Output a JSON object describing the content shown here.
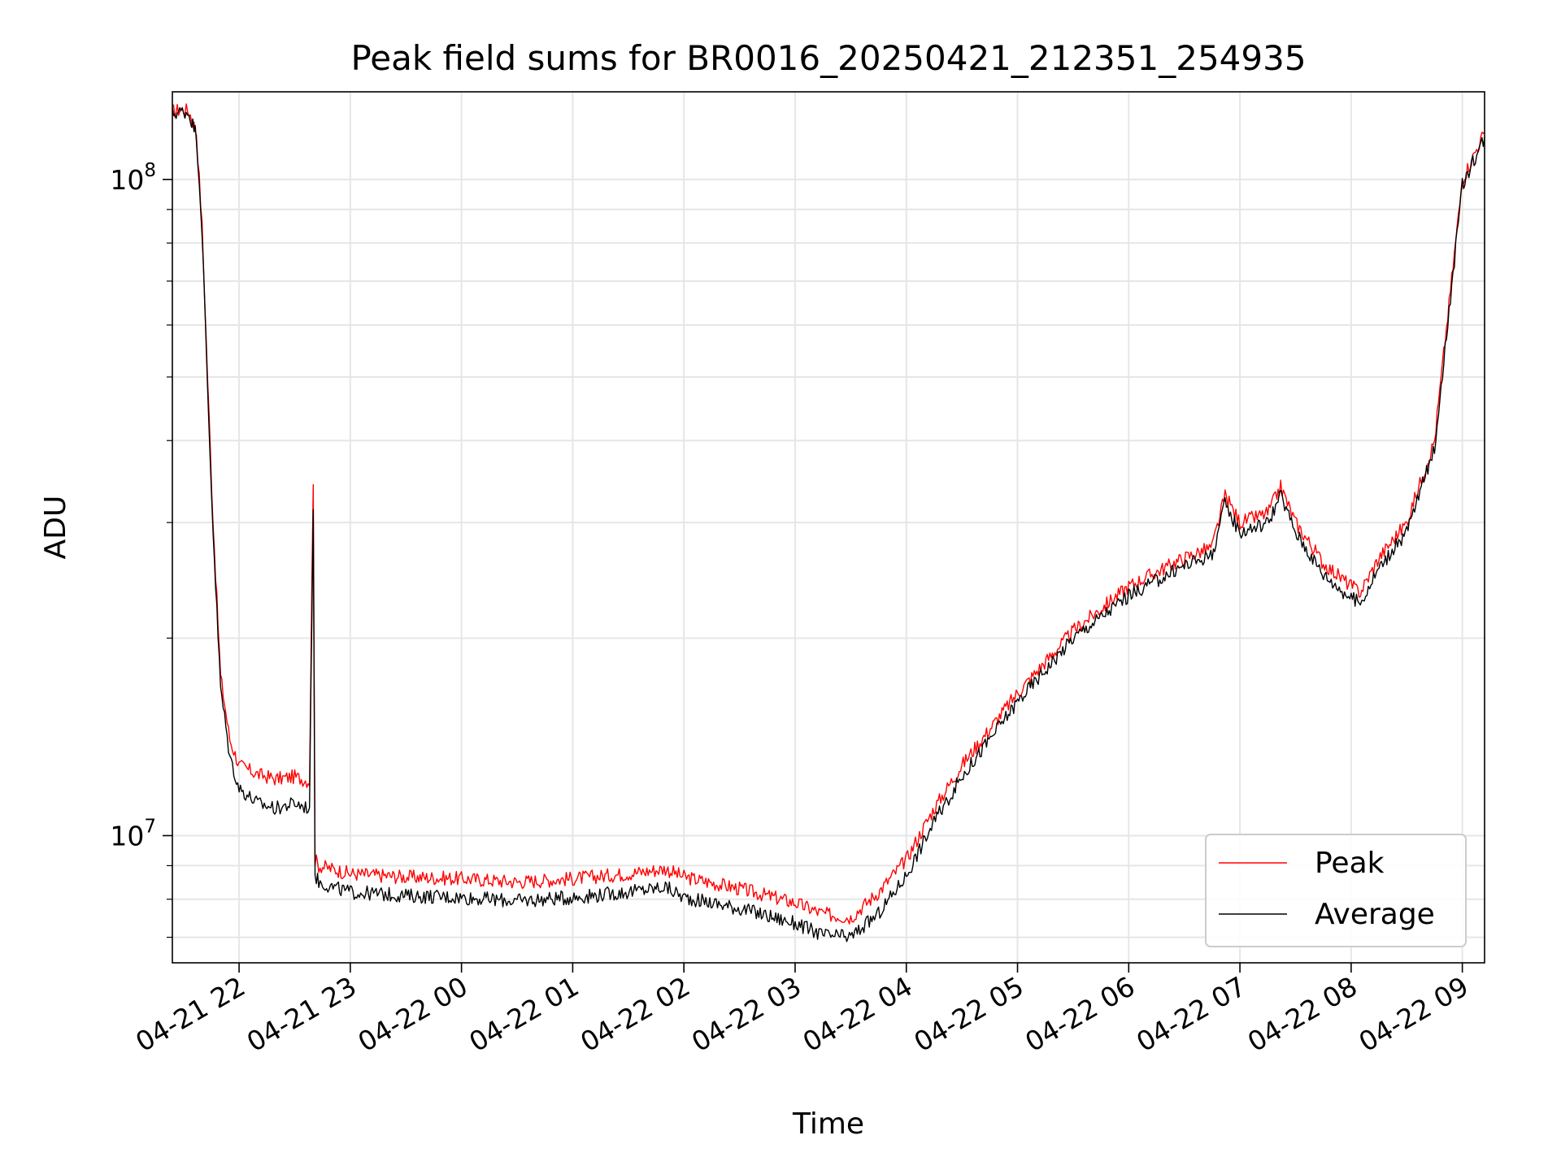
{
  "chart_data": {
    "type": "line",
    "title": "Peak field sums for BR0016_20250421_212351_254935",
    "xlabel": "Time",
    "ylabel": "ADU",
    "y_scale": "log",
    "ylim": [
      6400000,
      136000000
    ],
    "xlim": [
      "2025-04-21 21:24",
      "2025-04-22 09:12"
    ],
    "grid": true,
    "legend_position": "lower-right",
    "x_ticks": [
      {
        "t": "2025-04-21 22:00",
        "label": "04-21 22"
      },
      {
        "t": "2025-04-21 23:00",
        "label": "04-21 23"
      },
      {
        "t": "2025-04-22 00:00",
        "label": "04-22 00"
      },
      {
        "t": "2025-04-22 01:00",
        "label": "04-22 01"
      },
      {
        "t": "2025-04-22 02:00",
        "label": "04-22 02"
      },
      {
        "t": "2025-04-22 03:00",
        "label": "04-22 03"
      },
      {
        "t": "2025-04-22 04:00",
        "label": "04-22 04"
      },
      {
        "t": "2025-04-22 05:00",
        "label": "04-22 05"
      },
      {
        "t": "2025-04-22 06:00",
        "label": "04-22 06"
      },
      {
        "t": "2025-04-22 07:00",
        "label": "04-22 07"
      },
      {
        "t": "2025-04-22 08:00",
        "label": "04-22 08"
      },
      {
        "t": "2025-04-22 09:00",
        "label": "04-22 09"
      }
    ],
    "y_ticks": [
      {
        "value": 10000000,
        "base": "10",
        "exp": "7"
      },
      {
        "value": 100000000,
        "base": "10",
        "exp": "8"
      }
    ],
    "series": [
      {
        "name": "Peak",
        "color": "#ff0000",
        "x": [
          "2025-04-21 21:24",
          "2025-04-21 21:30",
          "2025-04-21 21:33",
          "2025-04-21 21:37",
          "2025-04-21 21:40",
          "2025-04-21 21:43",
          "2025-04-21 21:46",
          "2025-04-21 21:50",
          "2025-04-21 21:55",
          "2025-04-21 22:00",
          "2025-04-21 22:10",
          "2025-04-21 22:20",
          "2025-04-21 22:30",
          "2025-04-21 22:38",
          "2025-04-21 22:40",
          "2025-04-21 22:41",
          "2025-04-21 22:43",
          "2025-04-21 22:50",
          "2025-04-21 23:00",
          "2025-04-21 23:30",
          "2025-04-22 00:00",
          "2025-04-22 00:30",
          "2025-04-22 01:00",
          "2025-04-22 01:30",
          "2025-04-22 01:50",
          "2025-04-22 02:00",
          "2025-04-22 02:30",
          "2025-04-22 03:00",
          "2025-04-22 03:15",
          "2025-04-22 03:30",
          "2025-04-22 03:45",
          "2025-04-22 04:00",
          "2025-04-22 04:15",
          "2025-04-22 04:30",
          "2025-04-22 05:00",
          "2025-04-22 05:30",
          "2025-04-22 06:00",
          "2025-04-22 06:30",
          "2025-04-22 06:45",
          "2025-04-22 06:52",
          "2025-04-22 07:00",
          "2025-04-22 07:15",
          "2025-04-22 07:22",
          "2025-04-22 07:30",
          "2025-04-22 07:45",
          "2025-04-22 08:00",
          "2025-04-22 08:05",
          "2025-04-22 08:15",
          "2025-04-22 08:30",
          "2025-04-22 08:45",
          "2025-04-22 09:00",
          "2025-04-22 09:12"
        ],
        "values": [
          127000000,
          128000000,
          127000000,
          118000000,
          85000000,
          50000000,
          30000000,
          17500000,
          14000000,
          12800000,
          12400000,
          12200000,
          12300000,
          12100000,
          35000000,
          9200000,
          9000000,
          8900000,
          8750000,
          8650000,
          8600000,
          8500000,
          8600000,
          8750000,
          8900000,
          8650000,
          8300000,
          7900000,
          7600000,
          7500000,
          8200000,
          9200000,
          11000000,
          12800000,
          16500000,
          20500000,
          24000000,
          26500000,
          27500000,
          33000000,
          30000000,
          31000000,
          34000000,
          30000000,
          26000000,
          24000000,
          23500000,
          26500000,
          30000000,
          40000000,
          100000000,
          118000000
        ]
      },
      {
        "name": "Average",
        "color": "#000000",
        "x": [
          "2025-04-21 21:24",
          "2025-04-21 21:30",
          "2025-04-21 21:33",
          "2025-04-21 21:37",
          "2025-04-21 21:40",
          "2025-04-21 21:43",
          "2025-04-21 21:46",
          "2025-04-21 21:50",
          "2025-04-21 21:55",
          "2025-04-21 22:00",
          "2025-04-21 22:10",
          "2025-04-21 22:20",
          "2025-04-21 22:30",
          "2025-04-21 22:38",
          "2025-04-21 22:40",
          "2025-04-21 22:41",
          "2025-04-21 22:43",
          "2025-04-21 22:50",
          "2025-04-21 23:00",
          "2025-04-21 23:30",
          "2025-04-22 00:00",
          "2025-04-22 00:30",
          "2025-04-22 01:00",
          "2025-04-22 01:30",
          "2025-04-22 01:50",
          "2025-04-22 02:00",
          "2025-04-22 02:30",
          "2025-04-22 03:00",
          "2025-04-22 03:15",
          "2025-04-22 03:30",
          "2025-04-22 03:45",
          "2025-04-22 04:00",
          "2025-04-22 04:15",
          "2025-04-22 04:30",
          "2025-04-22 05:00",
          "2025-04-22 05:30",
          "2025-04-22 06:00",
          "2025-04-22 06:30",
          "2025-04-22 06:45",
          "2025-04-22 06:52",
          "2025-04-22 07:00",
          "2025-04-22 07:15",
          "2025-04-22 07:22",
          "2025-04-22 07:30",
          "2025-04-22 07:45",
          "2025-04-22 08:00",
          "2025-04-22 08:05",
          "2025-04-22 08:15",
          "2025-04-22 08:30",
          "2025-04-22 08:45",
          "2025-04-22 09:00",
          "2025-04-22 09:12"
        ],
        "values": [
          126000000,
          127000000,
          126000000,
          117000000,
          84000000,
          48000000,
          29000000,
          16800000,
          13200000,
          11800000,
          11200000,
          11000000,
          11200000,
          11000000,
          32000000,
          8700000,
          8500000,
          8350000,
          8200000,
          8100000,
          8050000,
          7950000,
          8050000,
          8200000,
          8350000,
          8050000,
          7750000,
          7350000,
          7050000,
          7000000,
          7600000,
          8700000,
          10500000,
          12300000,
          16000000,
          20000000,
          23200000,
          25800000,
          26800000,
          32000000,
          29000000,
          30000000,
          33000000,
          29000000,
          25000000,
          23000000,
          22600000,
          25600000,
          29000000,
          39000000,
          98000000,
          116000000
        ]
      }
    ]
  }
}
